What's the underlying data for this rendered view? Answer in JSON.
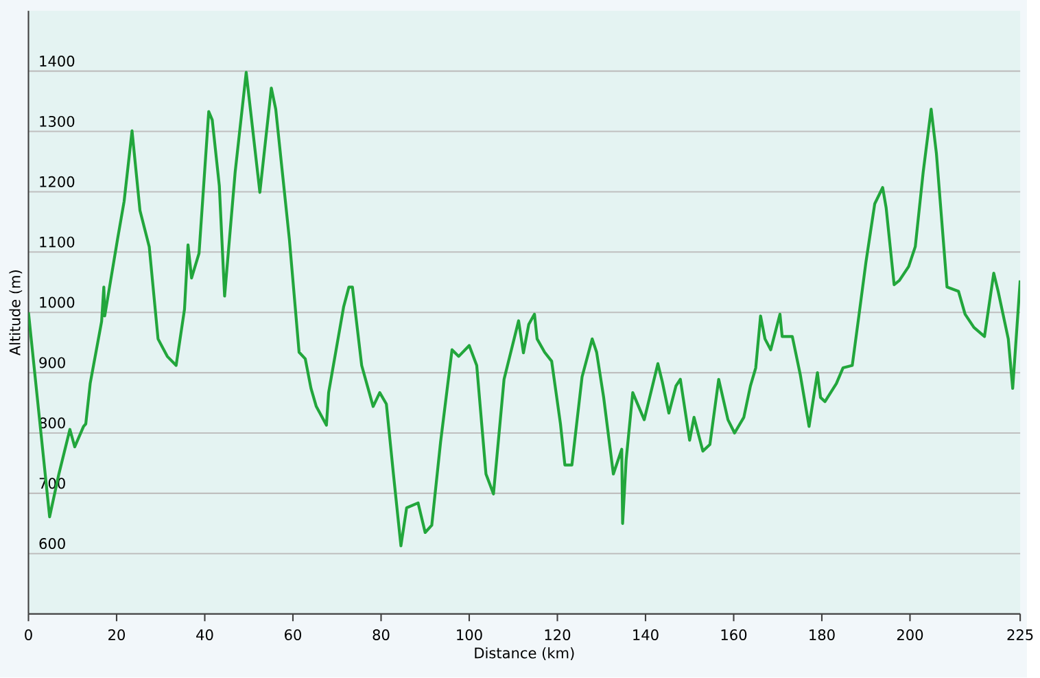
{
  "chart_data": {
    "type": "line",
    "xlabel": "Distance  (km)",
    "ylabel": "Altitude (m)",
    "xlim": [
      0,
      225
    ],
    "ylim": [
      500,
      1500
    ],
    "xticks": [
      0,
      20,
      40,
      60,
      80,
      100,
      120,
      140,
      160,
      180,
      200,
      225
    ],
    "yticks": [
      600,
      700,
      800,
      900,
      1000,
      1100,
      1200,
      1300,
      1400
    ],
    "grid": "y",
    "series": [
      {
        "color": "#22a63c",
        "x": [
          0,
          4.8,
          6.9,
          9.4,
          10.5,
          12.5,
          13,
          14,
          16.6,
          17.1,
          17.3,
          20.2,
          21.7,
          23.5,
          25.3,
          27.4,
          29.4,
          31.5,
          33.5,
          35.4,
          36.2,
          37,
          38.7,
          40.9,
          41.7,
          43.3,
          44.5,
          46.9,
          49.4,
          52.5,
          55.1,
          56.1,
          59.2,
          61.4,
          62.8,
          64.1,
          65.3,
          67.6,
          68.1,
          71.5,
          72.7,
          73.5,
          75.6,
          78.2,
          79.7,
          81.2,
          82.8,
          84.5,
          85.8,
          88.4,
          90,
          91.5,
          93.5,
          96.1,
          97.6,
          100,
          101.7,
          103.8,
          105.5,
          107.9,
          111.2,
          112.3,
          113.5,
          114.8,
          115.4,
          117.1,
          118.7,
          120.7,
          121.7,
          123.3,
          125.6,
          127.9,
          128.9,
          130.5,
          132.7,
          134.6,
          134.8,
          135.6,
          137.1,
          139.7,
          142.8,
          143.8,
          145.3,
          146.9,
          147.9,
          150,
          151,
          153,
          154.6,
          156.6,
          158.7,
          160.2,
          162.3,
          163.8,
          165,
          166.1,
          167.1,
          168.4,
          170.5,
          171,
          173.3,
          175.1,
          177.1,
          179,
          179.7,
          180.7,
          183.3,
          184.8,
          186.9,
          188.4,
          190,
          192,
          193.8,
          194.6,
          196.4,
          197.6,
          199.7,
          201.2,
          203,
          204.8,
          206,
          208.4,
          211,
          212.5,
          214.5,
          216.9,
          219,
          220,
          222.3,
          223.3,
          225
        ],
        "values": [
          1000,
          661,
          732,
          806,
          777,
          811,
          815,
          882,
          985,
          1042,
          994,
          1121,
          1184,
          1301,
          1169,
          1109,
          956,
          927,
          912,
          1005,
          1112,
          1057,
          1098,
          1333,
          1319,
          1210,
          1027,
          1233,
          1398,
          1199,
          1372,
          1337,
          1121,
          934,
          923,
          874,
          844,
          813,
          867,
          1009,
          1042,
          1042,
          912,
          844,
          867,
          848,
          732,
          613,
          676,
          684,
          635,
          647,
          785,
          938,
          927,
          945,
          912,
          732,
          699,
          889,
          986,
          933,
          980,
          997,
          956,
          934,
          919,
          815,
          747,
          747,
          893,
          956,
          934,
          859,
          732,
          773,
          650,
          755,
          867,
          822,
          915,
          885,
          833,
          878,
          889,
          788,
          826,
          770,
          781,
          889,
          822,
          800,
          826,
          878,
          908,
          994,
          956,
          938,
          997,
          960,
          960,
          897,
          811,
          900,
          859,
          852,
          882,
          908,
          912,
          994,
          1083,
          1180,
          1207,
          1173,
          1046,
          1053,
          1076,
          1109,
          1233,
          1337,
          1263,
          1042,
          1035,
          997,
          975,
          960,
          1065,
          1035,
          956,
          874,
          1053
        ]
      }
    ]
  }
}
